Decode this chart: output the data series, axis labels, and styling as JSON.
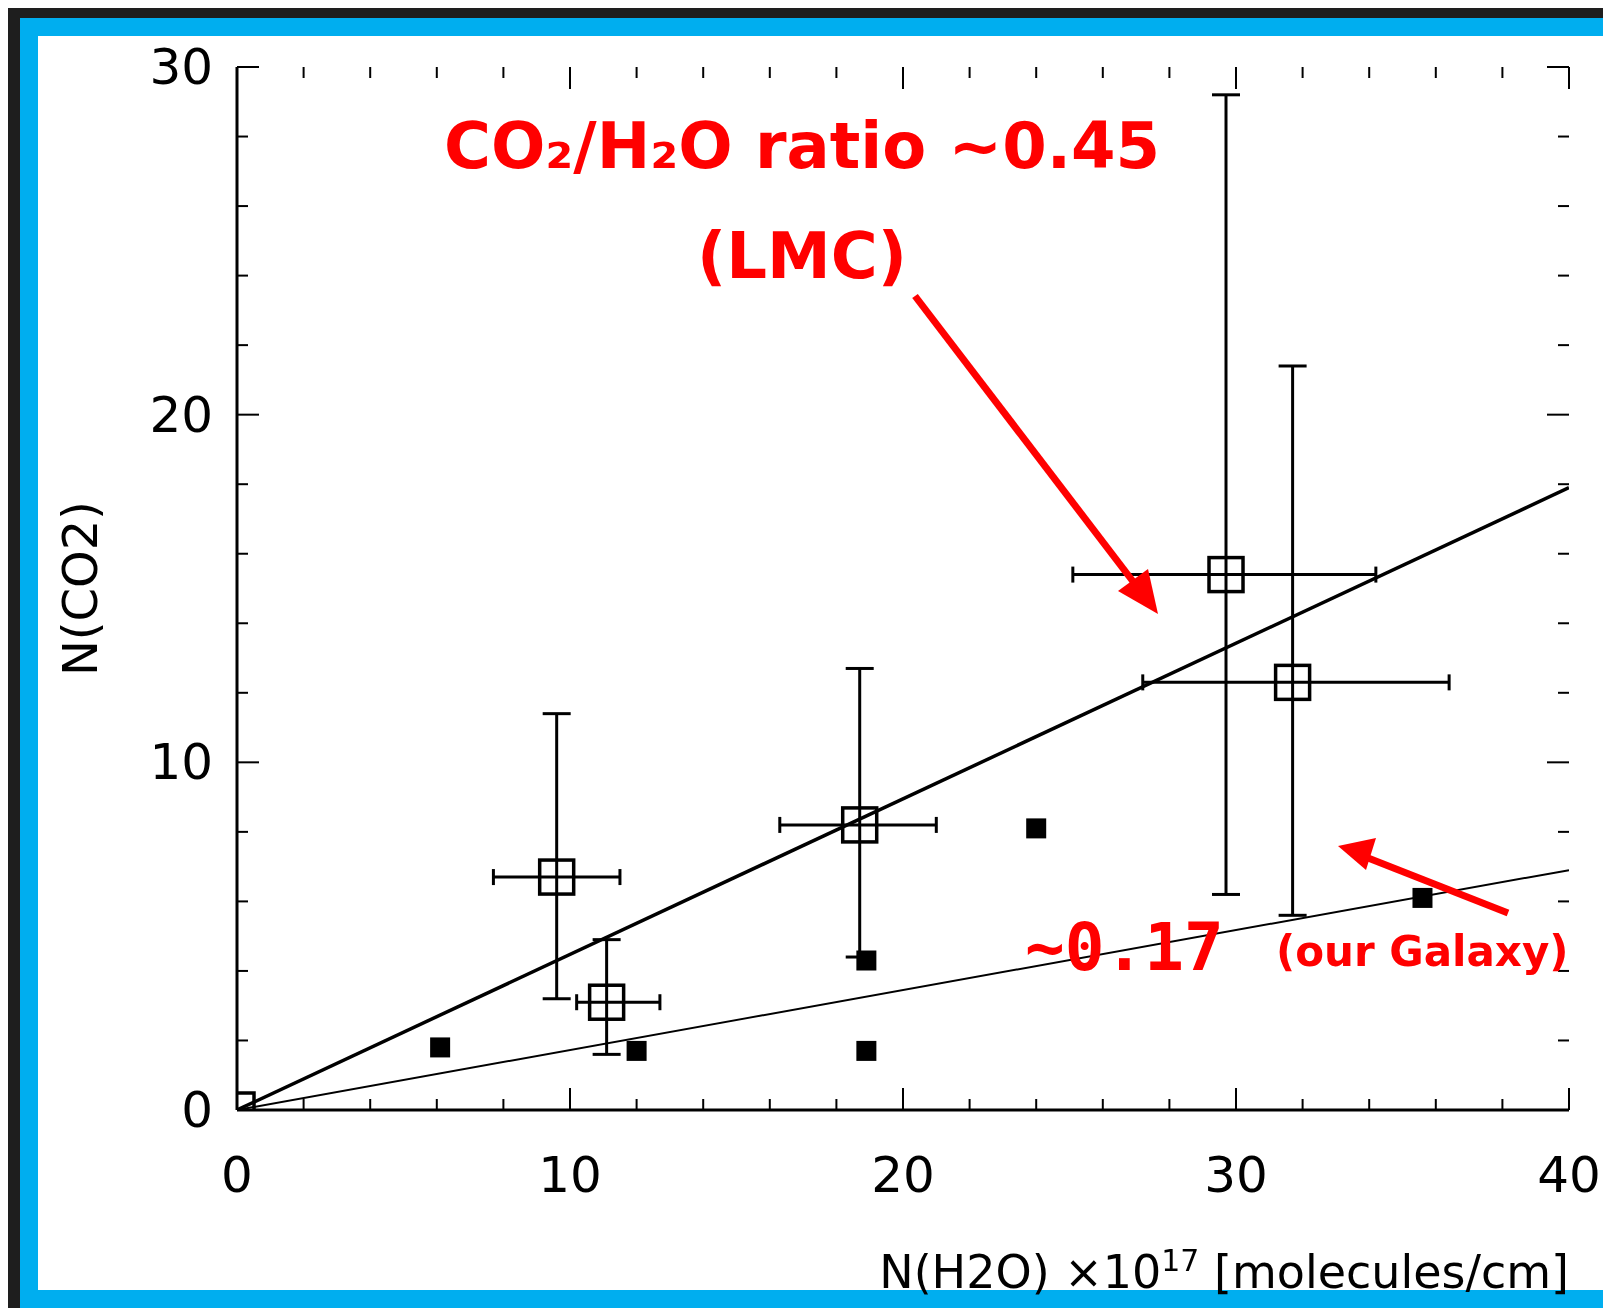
{
  "chart_data": {
    "type": "scatter",
    "xlabel": "N(H2O)  ×10$^{17}$ [molecules/cm]",
    "ylabel": "N(CO2)",
    "xlim": [
      0,
      40
    ],
    "ylim": [
      0,
      30
    ],
    "xticks": [
      0,
      {
        "value": 2,
        "label": null
      },
      {
        "value": 4,
        "label": null
      },
      {
        "value": 6,
        "label": null
      },
      {
        "value": 8,
        "label": null
      },
      10,
      {
        "value": 12,
        "label": null
      },
      {
        "value": 14,
        "label": null
      },
      {
        "value": 16,
        "label": null
      },
      {
        "value": 18,
        "label": null
      },
      20,
      {
        "value": 22,
        "label": null
      },
      {
        "value": 24,
        "label": null
      },
      {
        "value": 26,
        "label": null
      },
      {
        "value": 28,
        "label": null
      },
      30,
      {
        "value": 32,
        "label": null
      },
      {
        "value": 34,
        "label": null
      },
      {
        "value": 36,
        "label": null
      },
      {
        "value": 38,
        "label": null
      },
      40
    ],
    "yticks": [
      0,
      {
        "value": 2,
        "label": null
      },
      {
        "value": 4,
        "label": null
      },
      {
        "value": 6,
        "label": null
      },
      {
        "value": 8,
        "label": null
      },
      10,
      {
        "value": 12,
        "label": null
      },
      {
        "value": 14,
        "label": null
      },
      {
        "value": 16,
        "label": null
      },
      {
        "value": 18,
        "label": null
      },
      20,
      {
        "value": 22,
        "label": null
      },
      {
        "value": 24,
        "label": null
      },
      {
        "value": 26,
        "label": null
      },
      {
        "value": 28,
        "label": null
      },
      30
    ],
    "grid": false,
    "legend": false,
    "annotations": [
      "CO₂/H₂O ratio ~0.45",
      "(LMC)",
      "~0.17",
      "(our Galaxy)"
    ],
    "series": [
      {
        "type": "scatter",
        "color": "#000000",
        "marker": "square",
        "x": [
          0,
          9.6,
          11.1,
          18.7,
          29.7,
          31.7
        ],
        "values": [
          0,
          6.7,
          3.1,
          8.2,
          15.4,
          12.3
        ],
        "errors": [
          null,
          [
            3.2,
            11.4
          ],
          [
            1.6,
            4.9
          ],
          [
            4.4,
            12.7
          ],
          [
            6.2,
            29.2
          ],
          [
            5.6,
            21.4
          ]
        ],
        "xerrors": [
          null,
          [
            7.7,
            11.5
          ],
          [
            10.2,
            12.7
          ],
          [
            16.3,
            21.0
          ],
          [
            25.1,
            34.2
          ],
          [
            27.2,
            36.4
          ]
        ]
      },
      {
        "type": "scatter",
        "color": "#000000",
        "marker": "square",
        "x": [
          6.1,
          12.0,
          18.9,
          18.9,
          24.0,
          35.6
        ],
        "values": [
          1.8,
          1.7,
          4.3,
          1.7,
          8.1,
          6.1
        ]
      },
      {
        "type": "line",
        "color": "#000000",
        "marker": "none",
        "x": [
          0,
          40
        ],
        "values": [
          0,
          17.9
        ]
      },
      {
        "type": "line",
        "color": "#000000",
        "marker": "none",
        "x": [
          0,
          40
        ],
        "values": [
          0,
          6.9
        ]
      }
    ]
  }
}
